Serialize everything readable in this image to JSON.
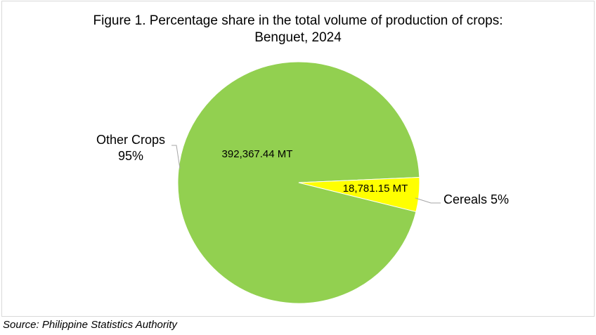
{
  "chart_data": {
    "type": "pie",
    "title_line1": "Figure 1. Percentage share in the total volume of production of crops:",
    "title_line2": "Benguet, 2024",
    "slices": [
      {
        "name": "Cereals",
        "value": 18781.15,
        "value_label": "18,781.15 MT",
        "percent_label": "5%",
        "color": "#ffff00"
      },
      {
        "name": "Other Crops",
        "value": 392367.44,
        "value_label": "392,367.44 MT",
        "percent_label": "95%",
        "color": "#92d050"
      }
    ],
    "category_labels": {
      "cereals": "Cereals 5%",
      "other_line1": "Other Crops",
      "other_line2": "95%"
    },
    "source": "Source: Philippine Statistics Authority"
  }
}
